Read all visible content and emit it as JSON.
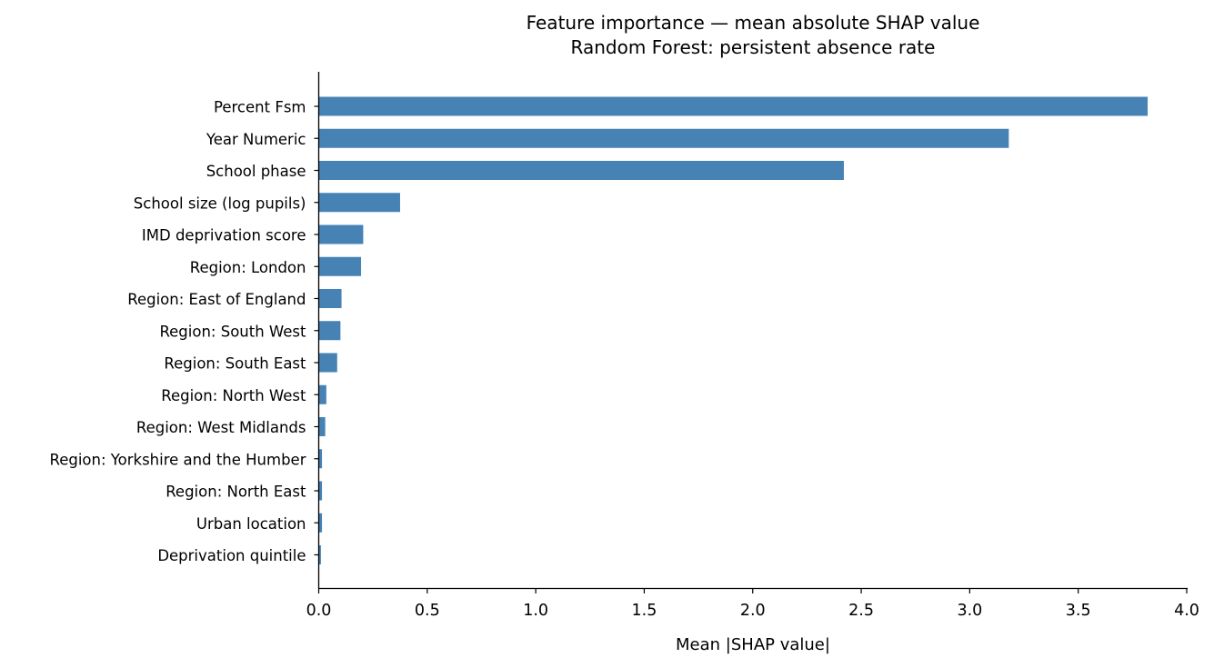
{
  "chart_data": {
    "type": "bar",
    "orientation": "horizontal",
    "title": "Feature importance — mean absolute SHAP value",
    "subtitle": "Random Forest: persistent absence rate",
    "xlabel": "Mean |SHAP value|",
    "ylabel": "",
    "xlim": [
      0,
      4.0
    ],
    "xticks": [
      "0.0",
      "0.5",
      "1.0",
      "1.5",
      "2.0",
      "2.5",
      "3.0",
      "3.5",
      "4.0"
    ],
    "grid": false,
    "bar_color": "#4682b4",
    "categories": [
      "Percent Fsm",
      "Year Numeric",
      "School phase",
      "School size (log pupils)",
      "IMD deprivation score",
      "Region: London",
      "Region: East of England",
      "Region: South West",
      "Region: South East",
      "Region: North West",
      "Region: West Midlands",
      "Region: Yorkshire and the Humber",
      "Region: North East",
      "Urban location",
      "Deprivation quintile"
    ],
    "values": [
      3.82,
      3.18,
      2.42,
      0.375,
      0.205,
      0.195,
      0.105,
      0.1,
      0.085,
      0.035,
      0.03,
      0.015,
      0.015,
      0.015,
      0.01
    ]
  }
}
